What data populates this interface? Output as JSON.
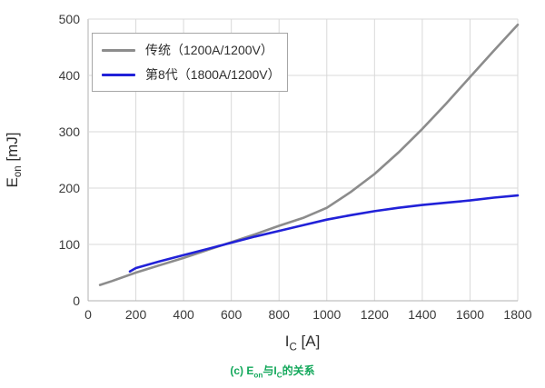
{
  "chart_data": {
    "type": "line",
    "title": "",
    "xlabel": "IC [A]",
    "ylabel": "Eon [mJ]",
    "xlim": [
      0,
      1800
    ],
    "ylim": [
      0,
      500
    ],
    "x_ticks": [
      0,
      200,
      400,
      600,
      800,
      1000,
      1200,
      1400,
      1600,
      1800
    ],
    "y_ticks": [
      0,
      100,
      200,
      300,
      400,
      500
    ],
    "grid": true,
    "legend_position": "top-left",
    "series": [
      {
        "name": "传统（1200A/1200V）",
        "color": "#8c8c8c",
        "x": [
          50,
          100,
          200,
          300,
          400,
          500,
          600,
          700,
          800,
          900,
          1000,
          1100,
          1200,
          1300,
          1400,
          1500,
          1600,
          1700,
          1800
        ],
        "y": [
          28,
          35,
          50,
          63,
          76,
          90,
          104,
          118,
          133,
          147,
          165,
          193,
          225,
          263,
          305,
          350,
          397,
          444,
          490
        ]
      },
      {
        "name": "第8代（1800A/1200V）",
        "color": "#2121d8",
        "x": [
          175,
          200,
          300,
          400,
          500,
          600,
          700,
          800,
          900,
          1000,
          1100,
          1200,
          1300,
          1400,
          1500,
          1600,
          1700,
          1800
        ],
        "y": [
          52,
          58,
          70,
          81,
          92,
          103,
          114,
          124,
          134,
          144,
          152,
          159,
          165,
          170,
          174,
          178,
          183,
          187
        ]
      }
    ]
  },
  "axes": {
    "y_label_segments": [
      {
        "t": "E"
      },
      {
        "t": "on",
        "sub": true
      },
      {
        "t": " [mJ]"
      }
    ],
    "x_label_segments": [
      {
        "t": "I"
      },
      {
        "t": "C",
        "sub": true
      },
      {
        "t": " [A]"
      }
    ]
  },
  "caption": {
    "segments": [
      {
        "t": "(c) E"
      },
      {
        "t": "on",
        "sub": true
      },
      {
        "t": "与I"
      },
      {
        "t": "C",
        "sub": true
      },
      {
        "t": "的关系"
      }
    ]
  },
  "colors": {
    "grid": "#d9d9d9",
    "axis": "#b2b2b2",
    "tick_text": "#3a3a3a",
    "caption_green": "#13a85b",
    "legend_border": "#a6a6a6"
  }
}
